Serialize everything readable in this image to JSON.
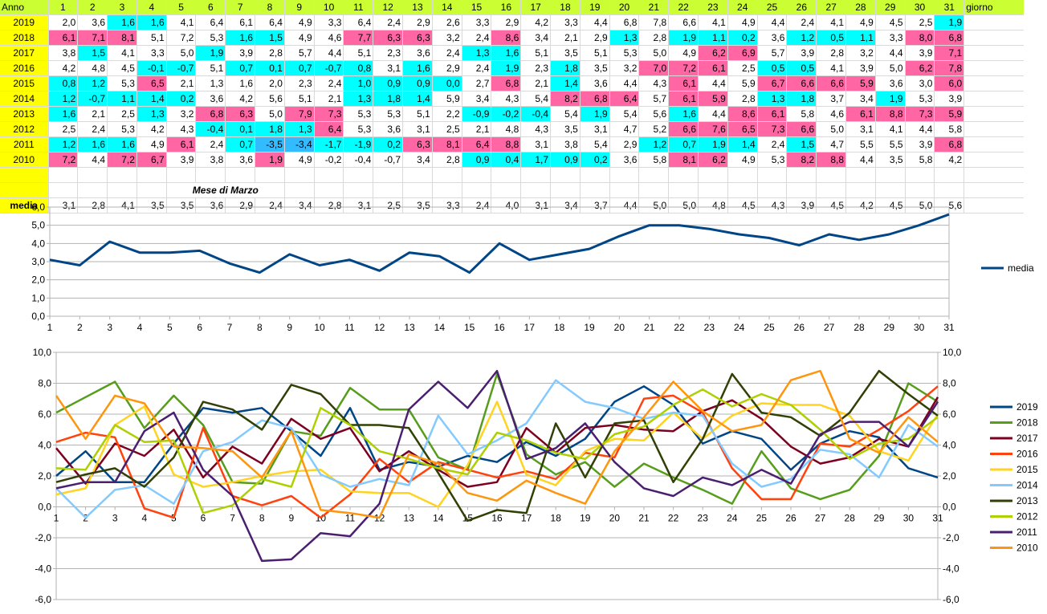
{
  "sheet": {
    "header_year": "Anno",
    "header_tail": "giorno",
    "days": [
      "1",
      "2",
      "3",
      "4",
      "5",
      "6",
      "7",
      "8",
      "9",
      "10",
      "11",
      "12",
      "13",
      "14",
      "15",
      "16",
      "17",
      "18",
      "19",
      "20",
      "21",
      "22",
      "23",
      "24",
      "25",
      "26",
      "27",
      "28",
      "29",
      "30",
      "31"
    ],
    "rows": [
      {
        "year": "2019",
        "values": [
          "2,0",
          "3,6",
          "1,6",
          "1,6",
          "4,1",
          "6,4",
          "6,1",
          "6,4",
          "4,9",
          "3,3",
          "6,4",
          "2,4",
          "2,9",
          "2,6",
          "3,3",
          "2,9",
          "4,2",
          "3,3",
          "4,4",
          "6,8",
          "7,8",
          "6,6",
          "4,1",
          "4,9",
          "4,4",
          "2,4",
          "4,1",
          "4,9",
          "4,5",
          "2,5",
          "1,9"
        ]
      },
      {
        "year": "2018",
        "values": [
          "6,1",
          "7,1",
          "8,1",
          "5,1",
          "7,2",
          "5,3",
          "1,6",
          "1,5",
          "4,9",
          "4,6",
          "7,7",
          "6,3",
          "6,3",
          "3,2",
          "2,4",
          "8,6",
          "3,4",
          "2,1",
          "2,9",
          "1,3",
          "2,8",
          "1,9",
          "1,1",
          "0,2",
          "3,6",
          "1,2",
          "0,5",
          "1,1",
          "3,3",
          "8,0",
          "6,8"
        ]
      },
      {
        "year": "2017",
        "values": [
          "3,8",
          "1,5",
          "4,1",
          "3,3",
          "5,0",
          "1,9",
          "3,9",
          "2,8",
          "5,7",
          "4,4",
          "5,1",
          "2,3",
          "3,6",
          "2,4",
          "1,3",
          "1,6",
          "5,1",
          "3,5",
          "5,1",
          "5,3",
          "5,0",
          "4,9",
          "6,2",
          "6,9",
          "5,7",
          "3,9",
          "2,8",
          "3,2",
          "4,4",
          "3,9",
          "7,1"
        ]
      },
      {
        "year": "2016",
        "values": [
          "4,2",
          "4,8",
          "4,5",
          "-0,1",
          "-0,7",
          "5,1",
          "0,7",
          "0,1",
          "0,7",
          "-0,7",
          "0,8",
          "3,1",
          "1,6",
          "2,9",
          "2,4",
          "1,9",
          "2,3",
          "1,8",
          "3,5",
          "3,2",
          "7,0",
          "7,2",
          "6,1",
          "2,5",
          "0,5",
          "0,5",
          "4,1",
          "3,9",
          "5,0",
          "6,2",
          "7,8"
        ]
      },
      {
        "year": "2015",
        "values": [
          "0,8",
          "1,2",
          "5,3",
          "6,5",
          "2,1",
          "1,3",
          "1,6",
          "2,0",
          "2,3",
          "2,4",
          "1,0",
          "0,9",
          "0,9",
          "0,0",
          "2,7",
          "6,8",
          "2,1",
          "1,4",
          "3,6",
          "4,4",
          "4,3",
          "6,1",
          "4,4",
          "5,9",
          "6,7",
          "6,6",
          "6,6",
          "5,9",
          "3,6",
          "3,0",
          "6,0"
        ]
      },
      {
        "year": "2014",
        "values": [
          "1,2",
          "-0,7",
          "1,1",
          "1,4",
          "0,2",
          "3,6",
          "4,2",
          "5,6",
          "5,1",
          "2,1",
          "1,3",
          "1,8",
          "1,4",
          "5,9",
          "3,4",
          "4,3",
          "5,4",
          "8,2",
          "6,8",
          "6,4",
          "5,7",
          "6,1",
          "5,9",
          "2,8",
          "1,3",
          "1,8",
          "3,7",
          "3,4",
          "1,9",
          "5,3",
          "3,9"
        ]
      },
      {
        "year": "2013",
        "values": [
          "1,6",
          "2,1",
          "2,5",
          "1,3",
          "3,2",
          "6,8",
          "6,3",
          "5,0",
          "7,9",
          "7,3",
          "5,3",
          "5,3",
          "5,1",
          "2,2",
          "-0,9",
          "-0,2",
          "-0,4",
          "5,4",
          "1,9",
          "5,4",
          "5,6",
          "1,6",
          "4,4",
          "8,6",
          "6,1",
          "5,8",
          "4,6",
          "6,1",
          "8,8",
          "7,3",
          "5,9"
        ]
      },
      {
        "year": "2012",
        "values": [
          "2,5",
          "2,4",
          "5,3",
          "4,2",
          "4,3",
          "-0,4",
          "0,1",
          "1,8",
          "1,3",
          "6,4",
          "5,3",
          "3,6",
          "3,1",
          "2,5",
          "2,1",
          "4,8",
          "4,3",
          "3,5",
          "3,1",
          "4,7",
          "5,2",
          "6,6",
          "7,6",
          "6,5",
          "7,3",
          "6,6",
          "5,0",
          "3,1",
          "4,1",
          "4,4",
          "5,8"
        ]
      },
      {
        "year": "2011",
        "values": [
          "1,2",
          "1,6",
          "1,6",
          "4,9",
          "6,1",
          "2,4",
          "0,7",
          "-3,5",
          "-3,4",
          "-1,7",
          "-1,9",
          "0,2",
          "6,3",
          "8,1",
          "6,4",
          "8,8",
          "3,1",
          "3,8",
          "5,4",
          "2,9",
          "1,2",
          "0,7",
          "1,9",
          "1,4",
          "2,4",
          "1,5",
          "4,7",
          "5,5",
          "5,5",
          "3,9",
          "6,8"
        ]
      },
      {
        "year": "2010",
        "values": [
          "7,2",
          "4,4",
          "7,2",
          "6,7",
          "3,9",
          "3,8",
          "3,6",
          "1,9",
          "4,9",
          "-0,2",
          "-0,4",
          "-0,7",
          "3,4",
          "2,8",
          "0,9",
          "0,4",
          "1,7",
          "0,9",
          "0,2",
          "3,6",
          "5,8",
          "8,1",
          "6,2",
          "4,9",
          "5,3",
          "8,2",
          "8,8",
          "4,4",
          "3,5",
          "5,8",
          "4,2"
        ]
      }
    ],
    "month_label": "Mese di Marzo",
    "media_label": "media",
    "media": [
      "3,1",
      "2,8",
      "4,1",
      "3,5",
      "3,5",
      "3,6",
      "2,9",
      "2,4",
      "3,4",
      "2,8",
      "3,1",
      "2,5",
      "3,5",
      "3,3",
      "2,4",
      "4,0",
      "3,1",
      "3,4",
      "3,7",
      "4,4",
      "5,0",
      "5,0",
      "4,8",
      "4,5",
      "4,3",
      "3,9",
      "4,5",
      "4,2",
      "4,5",
      "5,0",
      "5,6"
    ]
  },
  "colors": {
    "pink": "#ff66a3",
    "cyan": "#00ffff",
    "blue_cell": "#33bbff",
    "yellow": "#ffff00",
    "green": "#ccff33"
  },
  "highlights": {
    "2019": {
      "c": [
        3,
        4,
        31
      ]
    },
    "2018": {
      "p": [
        1,
        2,
        3,
        11,
        12,
        13,
        16,
        30,
        31
      ],
      "c": [
        7,
        8,
        20,
        22,
        23,
        24,
        26,
        27,
        28
      ]
    },
    "2017": {
      "c": [
        2,
        6,
        15,
        16
      ],
      "p": [
        23,
        24,
        31
      ]
    },
    "2016": {
      "c": [
        4,
        5,
        7,
        8,
        9,
        10,
        11,
        13,
        16,
        18,
        25,
        26
      ],
      "p": [
        21,
        22,
        23,
        30,
        31
      ]
    },
    "2015": {
      "c": [
        1,
        2,
        11,
        12,
        13,
        14,
        18
      ],
      "p": [
        4,
        16,
        22,
        25,
        26,
        27,
        28,
        31
      ]
    },
    "2014": {
      "c": [
        1,
        2,
        3,
        4,
        5,
        11,
        12,
        13,
        25,
        26,
        29
      ],
      "p": [
        18,
        19,
        20,
        22,
        23
      ]
    },
    "2013": {
      "c": [
        1,
        4,
        15,
        16,
        17,
        19,
        22
      ],
      "p": [
        6,
        7,
        9,
        10,
        24,
        25,
        28,
        29,
        30,
        31
      ]
    },
    "2012": {
      "c": [
        6,
        7,
        8,
        9
      ],
      "p": [
        10,
        22,
        23,
        24,
        25,
        26
      ]
    },
    "2011": {
      "c": [
        1,
        2,
        3,
        7,
        10,
        11,
        12,
        21,
        22,
        23,
        24,
        26
      ],
      "b": [
        8,
        9
      ],
      "p": [
        5,
        13,
        14,
        15,
        16,
        31
      ]
    },
    "2010": {
      "p": [
        1,
        3,
        4,
        8,
        22,
        23,
        26,
        27
      ],
      "c": [
        15,
        16,
        17,
        18,
        19
      ]
    }
  },
  "chart_data": [
    {
      "type": "line",
      "title": "",
      "x": [
        1,
        2,
        3,
        4,
        5,
        6,
        7,
        8,
        9,
        10,
        11,
        12,
        13,
        14,
        15,
        16,
        17,
        18,
        19,
        20,
        21,
        22,
        23,
        24,
        25,
        26,
        27,
        28,
        29,
        30,
        31
      ],
      "ylim": [
        0,
        6
      ],
      "yticks": [
        "0,0",
        "1,0",
        "2,0",
        "3,0",
        "4,0",
        "5,0",
        "6,0"
      ],
      "xticks": [
        "1",
        "2",
        "3",
        "4",
        "5",
        "6",
        "7",
        "8",
        "9",
        "10",
        "11",
        "12",
        "13",
        "14",
        "15",
        "16",
        "17",
        "18",
        "19",
        "20",
        "21",
        "22",
        "23",
        "24",
        "25",
        "26",
        "27",
        "28",
        "29",
        "30",
        "31"
      ],
      "grid": true,
      "legend": "right",
      "series": [
        {
          "name": "media",
          "color": "#004586",
          "values": [
            3.1,
            2.8,
            4.1,
            3.5,
            3.5,
            3.6,
            2.9,
            2.4,
            3.4,
            2.8,
            3.1,
            2.5,
            3.5,
            3.3,
            2.4,
            4.0,
            3.1,
            3.4,
            3.7,
            4.4,
            5.0,
            5.0,
            4.8,
            4.5,
            4.3,
            3.9,
            4.5,
            4.2,
            4.5,
            5.0,
            5.6
          ]
        }
      ]
    },
    {
      "type": "line",
      "title": "",
      "x": [
        1,
        2,
        3,
        4,
        5,
        6,
        7,
        8,
        9,
        10,
        11,
        12,
        13,
        14,
        15,
        16,
        17,
        18,
        19,
        20,
        21,
        22,
        23,
        24,
        25,
        26,
        27,
        28,
        29,
        30,
        31
      ],
      "ylim": [
        -6,
        10
      ],
      "yticks": [
        "-6,0",
        "-4,0",
        "-2,0",
        "0,0",
        "2,0",
        "4,0",
        "6,0",
        "8,0",
        "10,0"
      ],
      "yticks_right": [
        "-6,0",
        "-4,0",
        "-2,0",
        "0,0",
        "2,0",
        "4,0",
        "6,0",
        "8,0",
        "10,0"
      ],
      "xticks": [
        "1",
        "2",
        "3",
        "4",
        "5",
        "6",
        "7",
        "8",
        "9",
        "10",
        "11",
        "12",
        "13",
        "14",
        "15",
        "16",
        "17",
        "18",
        "19",
        "20",
        "21",
        "22",
        "23",
        "24",
        "25",
        "26",
        "27",
        "28",
        "29",
        "30",
        "31"
      ],
      "grid": true,
      "legend": "right",
      "series": [
        {
          "name": "2019",
          "color": "#004586",
          "values": [
            2.0,
            3.6,
            1.6,
            1.6,
            4.1,
            6.4,
            6.1,
            6.4,
            4.9,
            3.3,
            6.4,
            2.4,
            2.9,
            2.6,
            3.3,
            2.9,
            4.2,
            3.3,
            4.4,
            6.8,
            7.8,
            6.6,
            4.1,
            4.9,
            4.4,
            2.4,
            4.1,
            4.9,
            4.5,
            2.5,
            1.9
          ]
        },
        {
          "name": "2018",
          "color": "#579d1c",
          "values": [
            6.1,
            7.1,
            8.1,
            5.1,
            7.2,
            5.3,
            1.6,
            1.5,
            4.9,
            4.6,
            7.7,
            6.3,
            6.3,
            3.2,
            2.4,
            8.6,
            3.4,
            2.1,
            2.9,
            1.3,
            2.8,
            1.9,
            1.1,
            0.2,
            3.6,
            1.2,
            0.5,
            1.1,
            3.3,
            8.0,
            6.8
          ]
        },
        {
          "name": "2017",
          "color": "#7e0021",
          "values": [
            3.8,
            1.5,
            4.1,
            3.3,
            5.0,
            1.9,
            3.9,
            2.8,
            5.7,
            4.4,
            5.1,
            2.3,
            3.6,
            2.4,
            1.3,
            1.6,
            5.1,
            3.5,
            5.1,
            5.3,
            5.0,
            4.9,
            6.2,
            6.9,
            5.7,
            3.9,
            2.8,
            3.2,
            4.4,
            3.9,
            7.1
          ]
        },
        {
          "name": "2016",
          "color": "#ff420e",
          "values": [
            4.2,
            4.8,
            4.5,
            -0.1,
            -0.7,
            5.1,
            0.7,
            0.1,
            0.7,
            -0.7,
            0.8,
            3.1,
            1.6,
            2.9,
            2.4,
            1.9,
            2.3,
            1.8,
            3.5,
            3.2,
            7.0,
            7.2,
            6.1,
            2.5,
            0.5,
            0.5,
            4.1,
            3.9,
            5.0,
            6.2,
            7.8
          ]
        },
        {
          "name": "2015",
          "color": "#ffd320",
          "values": [
            0.8,
            1.2,
            5.3,
            6.5,
            2.1,
            1.3,
            1.6,
            2.0,
            2.3,
            2.4,
            1.0,
            0.9,
            0.9,
            0.0,
            2.7,
            6.8,
            2.1,
            1.4,
            3.6,
            4.4,
            4.3,
            6.1,
            4.4,
            5.9,
            6.7,
            6.6,
            6.6,
            5.9,
            3.6,
            3.0,
            6.0
          ]
        },
        {
          "name": "2014",
          "color": "#83caff",
          "values": [
            1.2,
            -0.7,
            1.1,
            1.4,
            0.2,
            3.6,
            4.2,
            5.6,
            5.1,
            2.1,
            1.3,
            1.8,
            1.4,
            5.9,
            3.4,
            4.3,
            5.4,
            8.2,
            6.8,
            6.4,
            5.7,
            6.1,
            5.9,
            2.8,
            1.3,
            1.8,
            3.7,
            3.4,
            1.9,
            5.3,
            3.9
          ]
        },
        {
          "name": "2013",
          "color": "#314004",
          "values": [
            1.6,
            2.1,
            2.5,
            1.3,
            3.2,
            6.8,
            6.3,
            5.0,
            7.9,
            7.3,
            5.3,
            5.3,
            5.1,
            2.2,
            -0.9,
            -0.2,
            -0.4,
            5.4,
            1.9,
            5.4,
            5.6,
            1.6,
            4.4,
            8.6,
            6.1,
            5.8,
            4.6,
            6.1,
            8.8,
            7.3,
            5.9
          ]
        },
        {
          "name": "2012",
          "color": "#aecf00",
          "values": [
            2.5,
            2.4,
            5.3,
            4.2,
            4.3,
            -0.4,
            0.1,
            1.8,
            1.3,
            6.4,
            5.3,
            3.6,
            3.1,
            2.5,
            2.1,
            4.8,
            4.3,
            3.5,
            3.1,
            4.7,
            5.2,
            6.6,
            7.6,
            6.5,
            7.3,
            6.6,
            5.0,
            3.1,
            4.1,
            4.4,
            5.8
          ]
        },
        {
          "name": "2011",
          "color": "#4b1f6f",
          "values": [
            1.2,
            1.6,
            1.6,
            4.9,
            6.1,
            2.4,
            0.7,
            -3.5,
            -3.4,
            -1.7,
            -1.9,
            0.2,
            6.3,
            8.1,
            6.4,
            8.8,
            3.1,
            3.8,
            5.4,
            2.9,
            1.2,
            0.7,
            1.9,
            1.4,
            2.4,
            1.5,
            4.7,
            5.5,
            5.5,
            3.9,
            6.8
          ]
        },
        {
          "name": "2010",
          "color": "#ff950e",
          "values": [
            7.2,
            4.4,
            7.2,
            6.7,
            3.9,
            3.8,
            3.6,
            1.9,
            4.9,
            -0.2,
            -0.4,
            -0.7,
            3.4,
            2.8,
            0.9,
            0.4,
            1.7,
            0.9,
            0.2,
            3.6,
            5.8,
            8.1,
            6.2,
            4.9,
            5.3,
            8.2,
            8.8,
            4.4,
            3.5,
            5.8,
            4.2
          ]
        }
      ]
    }
  ]
}
